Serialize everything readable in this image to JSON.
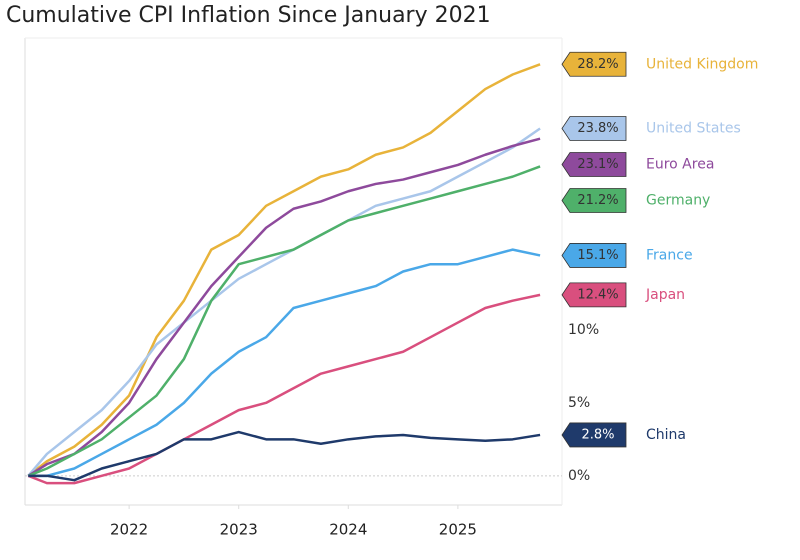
{
  "chart_data": {
    "type": "line",
    "title": "Cumulative CPI Inflation Since January 2021",
    "x": [
      2021.08,
      2021.25,
      2021.5,
      2021.75,
      2022,
      2022.25,
      2022.5,
      2022.75,
      2023,
      2023.25,
      2023.5,
      2023.75,
      2024,
      2024.25,
      2024.5,
      2024.75,
      2025,
      2025.25,
      2025.5,
      2025.75
    ],
    "xlim": [
      2021.05,
      2025.95
    ],
    "xticks": [
      2022,
      2023,
      2024,
      2025
    ],
    "ylim": [
      -2,
      30
    ],
    "yticks": [
      {
        "value": 0,
        "label": "0%"
      },
      {
        "value": 5,
        "label": "5%"
      },
      {
        "value": 10,
        "label": "10%"
      }
    ],
    "series": [
      {
        "name": "United Kingdom",
        "color": "#e8b33a",
        "values": [
          0,
          1,
          2,
          3.5,
          5.5,
          9.5,
          12,
          15.5,
          16.5,
          18.5,
          19.5,
          20.5,
          21,
          22,
          22.5,
          23.5,
          25,
          26.5,
          27.5,
          28.2
        ],
        "value_labels": [
          "28.2%"
        ]
      },
      {
        "name": "United States",
        "color": "#a9c6ea",
        "values": [
          0,
          1.5,
          3,
          4.5,
          6.5,
          9,
          10.5,
          12,
          13.5,
          14.5,
          15.5,
          16.5,
          17.5,
          18.5,
          19,
          19.5,
          20.5,
          21.5,
          22.5,
          23.8
        ],
        "value_labels": [
          "23.8%"
        ]
      },
      {
        "name": "Euro Area",
        "color": "#8e4a9c",
        "values": [
          0,
          0.8,
          1.5,
          3,
          5,
          8,
          10.5,
          13,
          15,
          17,
          18.3,
          18.8,
          19.5,
          20,
          20.3,
          20.8,
          21.3,
          22,
          22.6,
          23.1
        ],
        "value_labels": [
          "23.1%"
        ]
      },
      {
        "name": "Germany",
        "color": "#4fb06a",
        "values": [
          0,
          0.5,
          1.5,
          2.5,
          4,
          5.5,
          8,
          12,
          14.5,
          15,
          15.5,
          16.5,
          17.5,
          18,
          18.5,
          19,
          19.5,
          20,
          20.5,
          21.2
        ],
        "value_labels": [
          "21.2%"
        ]
      },
      {
        "name": "France",
        "color": "#4aa8e8",
        "values": [
          0,
          0,
          0.5,
          1.5,
          2.5,
          3.5,
          5,
          7,
          8.5,
          9.5,
          11.5,
          12,
          12.5,
          13,
          14,
          14.5,
          14.5,
          15,
          15.5,
          15.1
        ],
        "value_labels": [
          "15.1%"
        ]
      },
      {
        "name": "Japan",
        "color": "#d94f7e",
        "values": [
          0,
          -0.5,
          -0.5,
          0,
          0.5,
          1.5,
          2.5,
          3.5,
          4.5,
          5,
          6,
          7,
          7.5,
          8,
          8.5,
          9.5,
          10.5,
          11.5,
          12,
          12.4
        ],
        "value_labels": [
          "12.4%"
        ]
      },
      {
        "name": "China",
        "color": "#1f3a6b",
        "values": [
          0,
          0,
          -0.3,
          0.5,
          1,
          1.5,
          2.5,
          2.5,
          3,
          2.5,
          2.5,
          2.2,
          2.5,
          2.7,
          2.8,
          2.6,
          2.5,
          2.4,
          2.5,
          2.8
        ],
        "value_labels": [
          "2.8%"
        ]
      }
    ]
  }
}
